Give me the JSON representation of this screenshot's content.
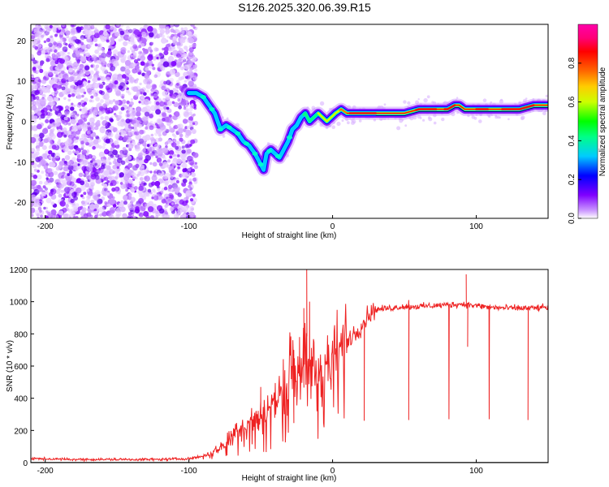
{
  "title": "S126.2025.320.06.39.R15",
  "chart_data": [
    {
      "type": "heatmap",
      "xlabel": "Height of straight line (km)",
      "ylabel": "Frequency (Hz)",
      "xlim": [
        -210,
        150
      ],
      "ylim": [
        -24,
        24
      ],
      "xticks": [
        -200,
        -100,
        0,
        100
      ],
      "yticks": [
        -20,
        -10,
        0,
        10,
        20
      ],
      "colorbar": {
        "label": "Normalized spectral amplitude",
        "range": [
          0,
          1
        ],
        "ticks": [
          "0.0",
          "0.2",
          "0.4",
          "0.6",
          "0.8"
        ],
        "colors": [
          "#ffffff",
          "#cc99ff",
          "#7f00ff",
          "#0000ff",
          "#00ccff",
          "#00ff88",
          "#00ff00",
          "#ccff00",
          "#ffcc00",
          "#ff6600",
          "#ff0000",
          "#ff0077",
          "#ff00aa"
        ]
      },
      "ridge": {
        "x": [
          -100,
          -95,
          -90,
          -86,
          -82,
          -78,
          -74,
          -70,
          -66,
          -62,
          -58,
          -54,
          -51,
          -48,
          -46,
          -43,
          -40,
          -37,
          -34,
          -31,
          -28,
          -25,
          -22,
          -19,
          -16,
          -13,
          -10,
          -7,
          -4,
          -1,
          2,
          6,
          10,
          15,
          20,
          30,
          40,
          50,
          60,
          70,
          80,
          85,
          88,
          92,
          96,
          100,
          105,
          110,
          115,
          120,
          130,
          140,
          150
        ],
        "y": [
          7,
          7,
          6,
          4,
          2,
          -2,
          -1,
          -2,
          -3,
          -5,
          -6,
          -8,
          -10,
          -12,
          -8,
          -7,
          -8,
          -9,
          -7,
          -5,
          -2,
          -1,
          1,
          2,
          0,
          1,
          2,
          1,
          0,
          1,
          2,
          3,
          2,
          2,
          2,
          2,
          2,
          2,
          3,
          3,
          3,
          4,
          4,
          3,
          3,
          3,
          3,
          3,
          3,
          3,
          3,
          4,
          4
        ]
      }
    },
    {
      "type": "line",
      "xlabel": "Height of straight line (km)",
      "ylabel": "SNR (10 * v/v)",
      "xlim": [
        -210,
        150
      ],
      "ylim": [
        0,
        1200
      ],
      "xticks": [
        -200,
        -100,
        0,
        100
      ],
      "yticks": [
        0,
        200,
        400,
        600,
        800,
        1000,
        1200
      ],
      "series": [
        {
          "name": "SNR",
          "color": "#ee2222",
          "envelope": {
            "x": [
              -210,
              -180,
              -150,
              -120,
              -100,
              -90,
              -80,
              -75,
              -70,
              -65,
              -60,
              -55,
              -50,
              -45,
              -40,
              -35,
              -30,
              -25,
              -20,
              -15,
              -10,
              -5,
              0,
              5,
              10,
              15,
              20,
              25,
              30,
              40,
              50,
              60,
              70,
              80,
              90,
              100,
              110,
              120,
              130,
              140,
              150
            ],
            "y": [
              25,
              20,
              20,
              20,
              25,
              40,
              80,
              120,
              180,
              220,
              250,
              270,
              290,
              340,
              380,
              480,
              570,
              620,
              640,
              600,
              560,
              580,
              620,
              700,
              760,
              800,
              850,
              920,
              950,
              960,
              970,
              970,
              975,
              980,
              985,
              975,
              965,
              960,
              960,
              960,
              965
            ]
          },
          "spikes": [
            {
              "x": -18,
              "y": 1200
            },
            {
              "x": -20,
              "y": 960
            },
            {
              "x": -16,
              "y": 1000
            },
            {
              "x": -23,
              "y": 780
            },
            {
              "x": -27,
              "y": 700
            },
            {
              "x": -50,
              "y": 470
            },
            {
              "x": 53,
              "y": 1010
            },
            {
              "x": 93,
              "y": 1170
            },
            {
              "x": 94,
              "y": 720
            }
          ],
          "dips": [
            {
              "x": 22,
              "y": 260
            },
            {
              "x": 53,
              "y": 265
            },
            {
              "x": 81,
              "y": 270
            },
            {
              "x": 109,
              "y": 270
            },
            {
              "x": 136,
              "y": 265
            }
          ]
        }
      ]
    }
  ]
}
